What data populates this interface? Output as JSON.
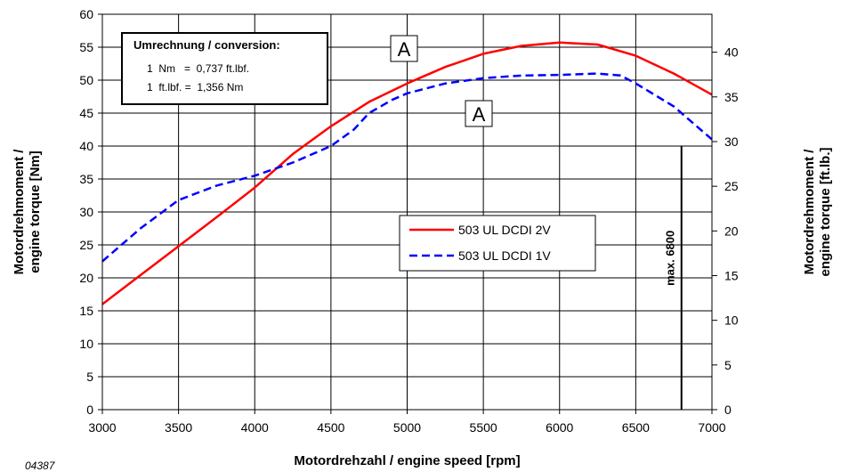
{
  "chart_data": {
    "type": "line",
    "title": "",
    "xlabel": "Motordrehzahl / engine speed [rpm]",
    "ylabel": "Motordrehmoment / engine torque [Nm]",
    "y2label": "Motordrehmoment / engine torque [ft.lb.]",
    "xlim": [
      3000,
      7000
    ],
    "ylim": [
      0,
      60
    ],
    "y2lim": [
      0,
      44.25
    ],
    "x_ticks": [
      3000,
      3500,
      4000,
      4500,
      5000,
      5500,
      6000,
      6500,
      7000
    ],
    "y_ticks": [
      0,
      5,
      10,
      15,
      20,
      25,
      30,
      35,
      40,
      45,
      50,
      55,
      60
    ],
    "y2_ticks": [
      0,
      5,
      10,
      15,
      20,
      25,
      30,
      35,
      40
    ],
    "grid": true,
    "legend_position": "center-right",
    "series": [
      {
        "name": "503 UL DCDI 2V",
        "color": "#ff0000",
        "line_style": "solid",
        "x": [
          3000,
          3250,
          3500,
          3750,
          4000,
          4250,
          4500,
          4750,
          5000,
          5250,
          5500,
          5750,
          6000,
          6250,
          6500,
          6750,
          7000
        ],
        "y": [
          16.0,
          20.4,
          24.8,
          29.2,
          33.7,
          38.8,
          43.0,
          46.7,
          49.5,
          52.0,
          54.0,
          55.2,
          55.7,
          55.4,
          53.7,
          51.0,
          47.8
        ]
      },
      {
        "name": "503 UL DCDI 1V",
        "color": "#0000ff",
        "line_style": "dashed",
        "x": [
          3000,
          3250,
          3500,
          3750,
          4000,
          4250,
          4500,
          4650,
          4750,
          4900,
          5000,
          5250,
          5500,
          5750,
          6000,
          6250,
          6400,
          6500,
          6750,
          7000
        ],
        "y": [
          22.5,
          27.5,
          31.8,
          34.0,
          35.5,
          37.5,
          40.0,
          42.5,
          45.0,
          47.0,
          48.0,
          49.5,
          50.3,
          50.7,
          50.8,
          51.0,
          50.7,
          49.5,
          46.0,
          41.0
        ]
      }
    ],
    "conversion_box": {
      "title": "Umrechnung / conversion:",
      "line1": "1  Nm   =  0,737 ft.lbf.",
      "line2": "1  ft.lbf. =  1,356 Nm"
    },
    "annotations": {
      "marker_a": "A",
      "max_label": "max. 6800",
      "max_rpm": 6800
    },
    "figure_id": "04387"
  }
}
